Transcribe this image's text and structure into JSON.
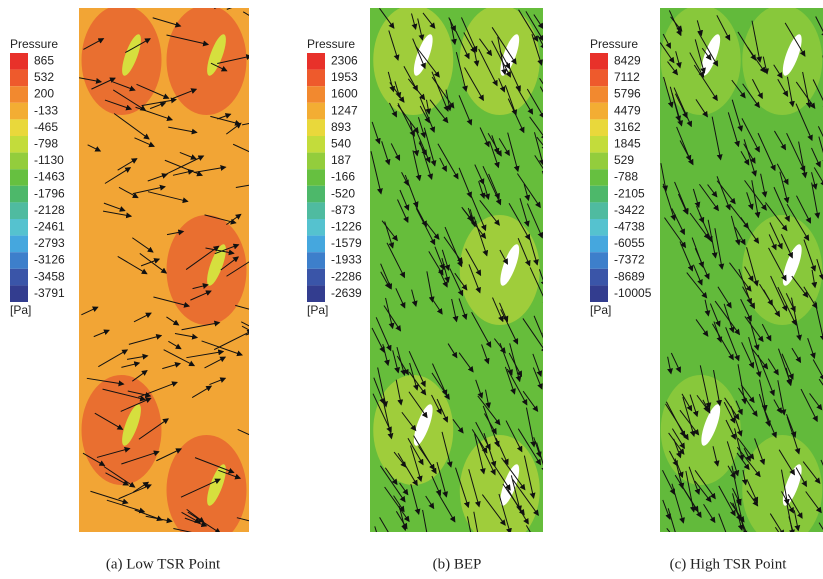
{
  "panels": [
    {
      "legend_title": "Pressure",
      "labels": [
        865,
        532,
        200,
        -133,
        -465,
        -798,
        -1130,
        -1463,
        -1796,
        -2128,
        -2461,
        -2793,
        -3126,
        -3458,
        -3791
      ],
      "unit": "[Pa]",
      "caption": "(a) Low TSR Point"
    },
    {
      "legend_title": "Pressure",
      "labels": [
        2306,
        1953,
        1600,
        1247,
        893,
        540,
        187,
        -166,
        -520,
        -873,
        -1226,
        -1579,
        -1933,
        -2286,
        -2639
      ],
      "unit": "[Pa]",
      "caption": "(b) BEP"
    },
    {
      "legend_title": "Pressure",
      "labels": [
        8429,
        7112,
        5796,
        4479,
        3162,
        1845,
        529,
        -788,
        -2105,
        -3422,
        -4738,
        -6055,
        -7372,
        -8689,
        -10005
      ],
      "unit": "[Pa]",
      "caption": "(c) High TSR Point"
    }
  ]
}
